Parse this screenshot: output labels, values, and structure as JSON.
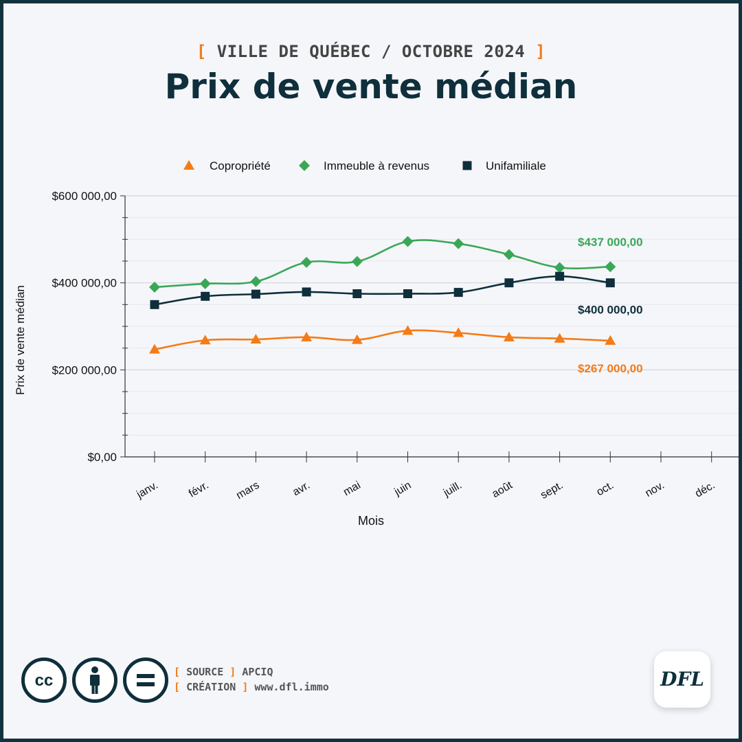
{
  "header": {
    "kicker": "VILLE DE QUÉBEC / OCTOBRE 2024",
    "bracket_open": "[",
    "bracket_close": "]",
    "title": "Prix de vente médian"
  },
  "colors": {
    "copropriete": "#f57b16",
    "immeuble": "#3aa757",
    "unifamiliale": "#0e2f3b",
    "accent": "#f07c1a",
    "grid": "#dcdde3"
  },
  "chart_data": {
    "type": "line",
    "categories": [
      "janv.",
      "févr.",
      "mars",
      "avr.",
      "mai",
      "juin",
      "juill.",
      "août",
      "sept.",
      "oct.",
      "nov.",
      "déc."
    ],
    "xlabel": "Mois",
    "ylabel": "Prix de vente médian",
    "ylim": [
      0,
      600000
    ],
    "yticks": [
      0,
      200000,
      400000,
      600000
    ],
    "ytick_labels": [
      "$0,00",
      "$200 000,00",
      "$400 000,00",
      "$600 000,00"
    ],
    "grid": true,
    "legend_position": "top-center",
    "series": [
      {
        "name": "Copropriété",
        "marker": "triangle",
        "color": "#f57b16",
        "values": [
          247000,
          268000,
          270000,
          275000,
          269000,
          290000,
          285000,
          275000,
          272000,
          267000,
          null,
          null
        ],
        "end_label": "$267 000,00"
      },
      {
        "name": "Immeuble à revenus",
        "marker": "diamond",
        "color": "#3aa757",
        "values": [
          390000,
          398000,
          403000,
          447000,
          449000,
          495000,
          490000,
          465000,
          435000,
          437000,
          null,
          null
        ],
        "end_label": "$437 000,00"
      },
      {
        "name": "Unifamiliale",
        "marker": "square",
        "color": "#0e2f3b",
        "values": [
          350000,
          369000,
          374000,
          379000,
          375000,
          375000,
          378000,
          400000,
          415000,
          400000,
          null,
          null
        ],
        "end_label": "$400 000,00"
      }
    ]
  },
  "footer": {
    "source_label": "SOURCE",
    "source_value": "APCIQ",
    "creation_label": "CRÉATION",
    "creation_value": "www.dfl.immo",
    "logo_text": "DFL",
    "icons": [
      "cc-icon",
      "by-person-icon",
      "nd-equal-icon"
    ]
  }
}
